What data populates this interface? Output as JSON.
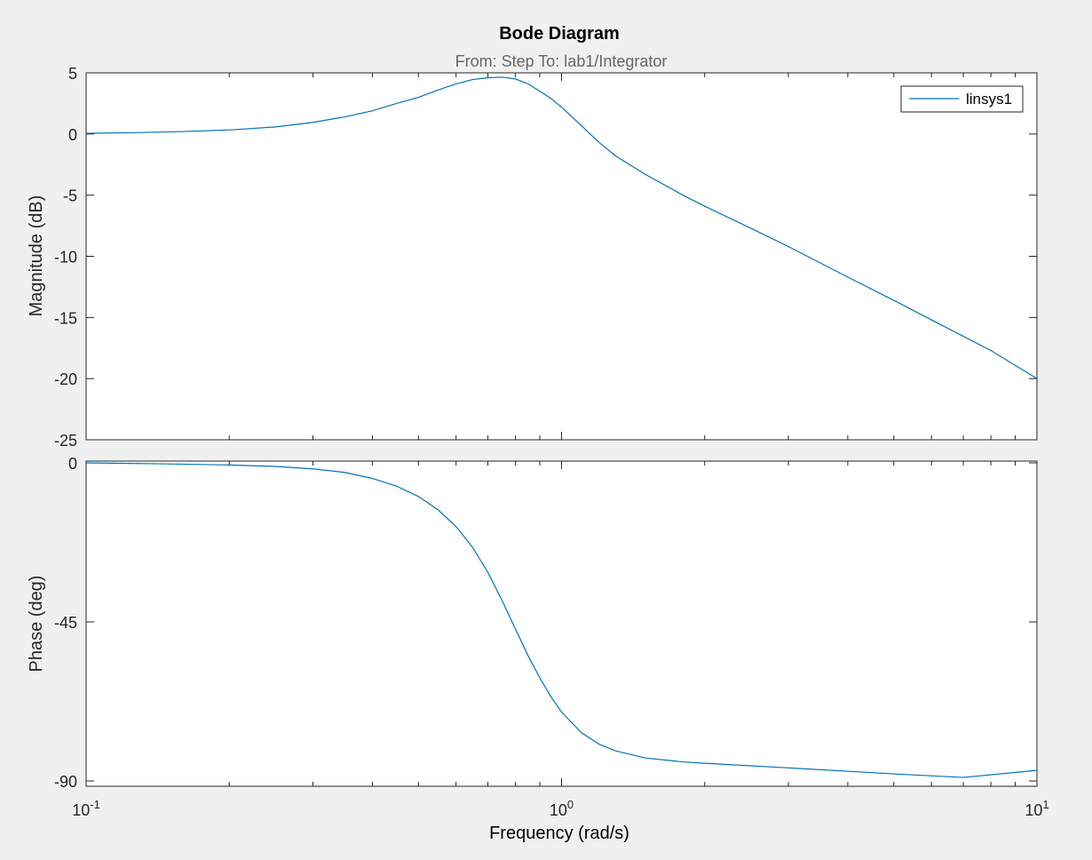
{
  "chart_data": {
    "type": "line",
    "title": "Bode Diagram",
    "subtitle": "From: Step  To: lab1/Integrator",
    "xlabel": "Frequency  (rad/s)",
    "x_scale": "log",
    "xlim": [
      0.1,
      10
    ],
    "x_ticks": [
      {
        "value": 0.1,
        "base": "10",
        "exp": "-1"
      },
      {
        "value": 1,
        "base": "10",
        "exp": "0"
      },
      {
        "value": 10,
        "base": "10",
        "exp": "1"
      }
    ],
    "legend": {
      "entries": [
        "linsys1"
      ],
      "placement": "top-right"
    },
    "line_color": "#0072bd",
    "panels": [
      {
        "id": "magnitude",
        "ylabel": "Magnitude (dB)",
        "ylim": [
          -25,
          5
        ],
        "y_ticks": [
          5,
          0,
          -5,
          -10,
          -15,
          -20,
          -25
        ],
        "series": [
          {
            "name": "linsys1",
            "x": [
              0.1,
              0.13,
              0.16,
              0.2,
              0.25,
              0.3,
              0.35,
              0.4,
              0.45,
              0.5,
              0.55,
              0.6,
              0.65,
              0.7,
              0.75,
              0.8,
              0.85,
              0.9,
              0.95,
              1.0,
              1.1,
              1.2,
              1.3,
              1.5,
              1.8,
              2.0,
              2.5,
              3.0,
              4.0,
              5.0,
              6.0,
              8.0,
              10.0
            ],
            "y": [
              0.05,
              0.12,
              0.2,
              0.33,
              0.58,
              0.95,
              1.4,
              1.9,
              2.5,
              3.0,
              3.6,
              4.1,
              4.45,
              4.6,
              4.65,
              4.5,
              4.1,
              3.5,
              2.9,
              2.2,
              0.7,
              -0.7,
              -1.8,
              -3.3,
              -5.0,
              -5.9,
              -7.7,
              -9.2,
              -11.7,
              -13.6,
              -15.2,
              -17.7,
              -20.0
            ]
          }
        ]
      },
      {
        "id": "phase",
        "ylabel": "Phase (deg)",
        "ylim": [
          -91.5,
          0.5
        ],
        "y_ticks": [
          0,
          -45,
          -90
        ],
        "series": [
          {
            "name": "linsys1",
            "x": [
              0.1,
              0.15,
              0.2,
              0.25,
              0.3,
              0.35,
              0.4,
              0.45,
              0.5,
              0.55,
              0.6,
              0.65,
              0.7,
              0.75,
              0.8,
              0.85,
              0.9,
              0.95,
              1.0,
              1.1,
              1.2,
              1.3,
              1.5,
              1.8,
              2.0,
              3.0,
              5.0,
              7.0,
              10.0
            ],
            "y": [
              0.0,
              -0.3,
              -0.6,
              -1.0,
              -1.7,
              -2.7,
              -4.4,
              -6.6,
              -9.5,
              -13.3,
              -18.0,
              -23.9,
              -31.0,
              -39.0,
              -47.0,
              -54.5,
              -60.8,
              -66.2,
              -70.5,
              -76.3,
              -79.6,
              -81.5,
              -83.5,
              -84.6,
              -85.0,
              -86.3,
              -88.0,
              -89.0,
              -87.0
            ]
          }
        ]
      }
    ]
  }
}
